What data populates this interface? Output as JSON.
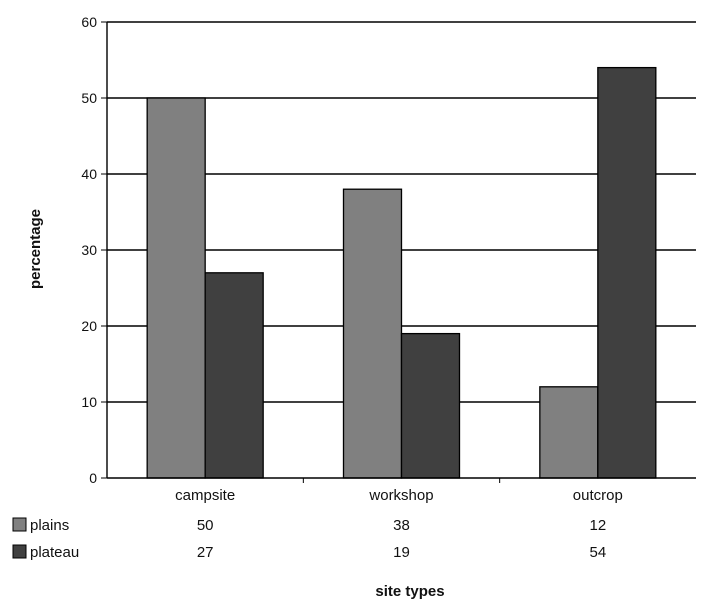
{
  "chart_data": {
    "type": "bar",
    "title": "",
    "xlabel": "site types",
    "ylabel": "percentage",
    "categories": [
      "campsite",
      "workshop",
      "outcrop"
    ],
    "series": [
      {
        "name": "plains",
        "values": [
          50,
          38,
          12
        ],
        "color": "#808080"
      },
      {
        "name": "plateau",
        "values": [
          27,
          19,
          54
        ],
        "color": "#404040"
      }
    ],
    "ylim": [
      0,
      60
    ],
    "yticks": [
      0,
      10,
      20,
      30,
      40,
      50,
      60
    ],
    "grid": true,
    "legend": "data-table-left"
  }
}
